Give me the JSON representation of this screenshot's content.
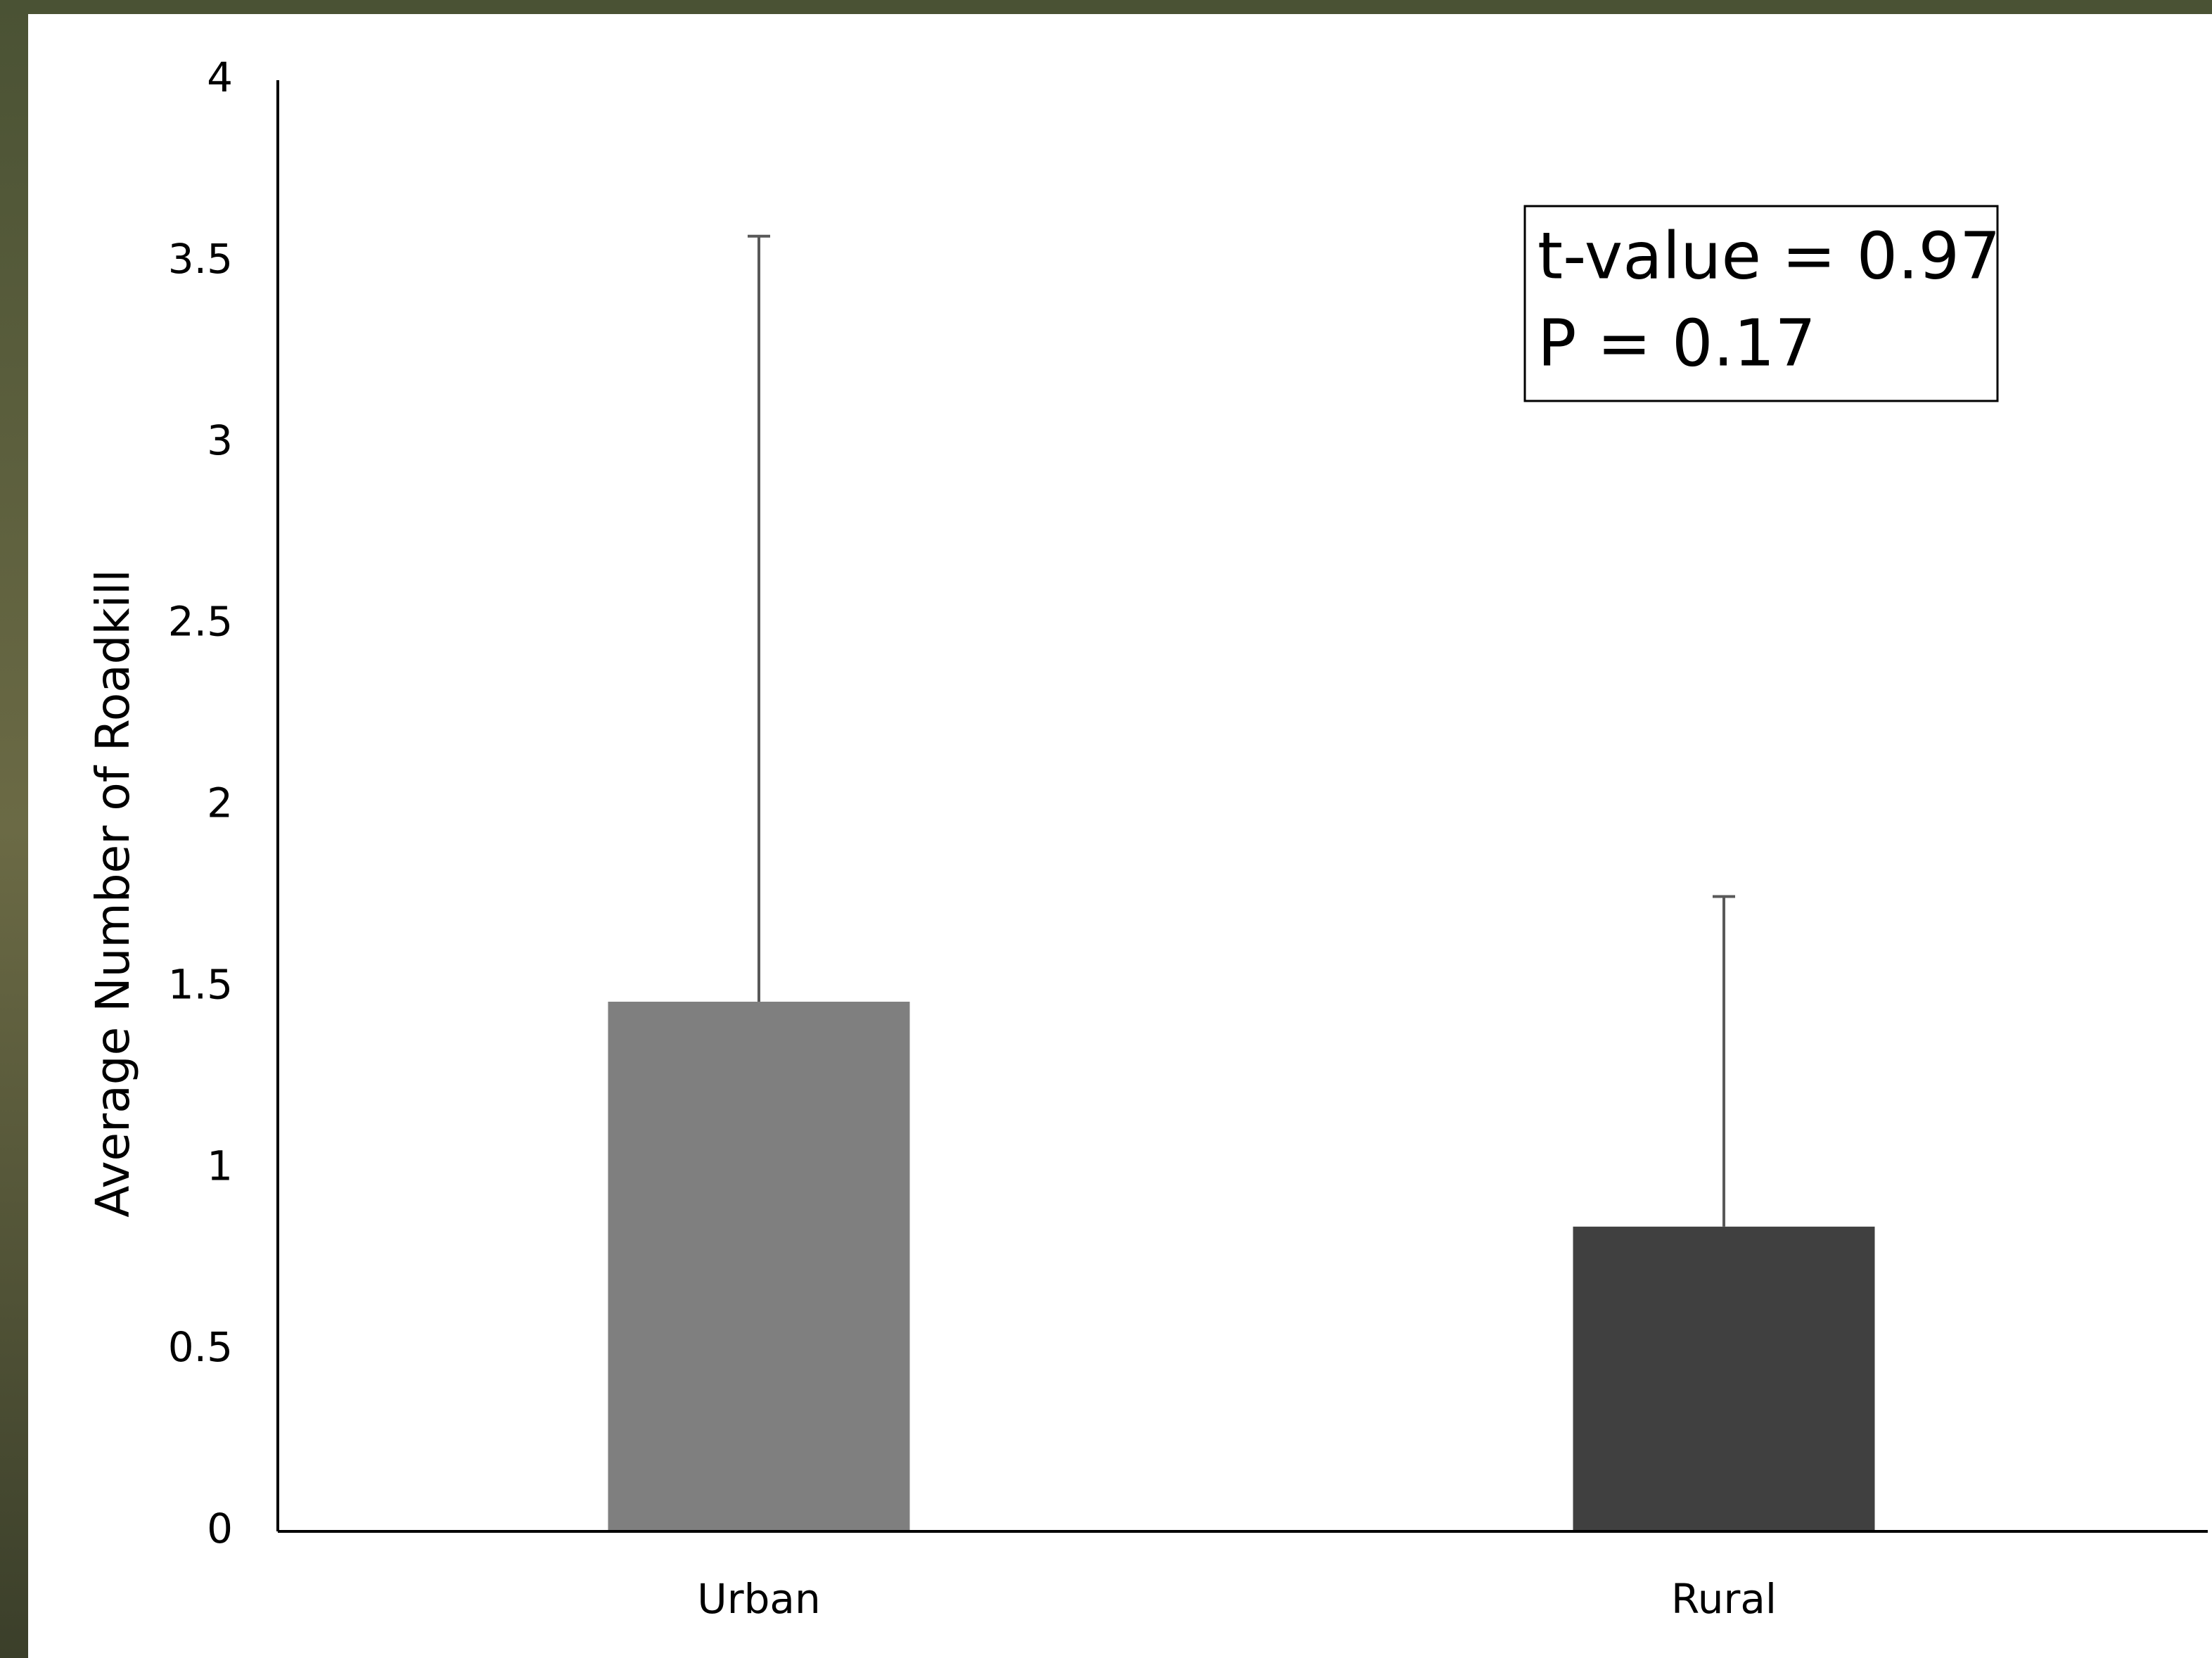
{
  "chart_data": {
    "type": "bar",
    "y_label": "Average Number of Roadkill",
    "categories": [
      "Urban",
      "Rural"
    ],
    "values": [
      1.46,
      0.84
    ],
    "errors": [
      2.11,
      0.91
    ],
    "colors": [
      "#7f7f7f",
      "#404040"
    ],
    "error_color": "#595959",
    "ylim": [
      0,
      4
    ],
    "yticks": [
      0,
      0.5,
      1,
      1.5,
      2,
      2.5,
      3,
      3.5,
      4
    ],
    "grid": false,
    "annotations": [
      "t-value = 0.97",
      "P = 0.17"
    ]
  }
}
